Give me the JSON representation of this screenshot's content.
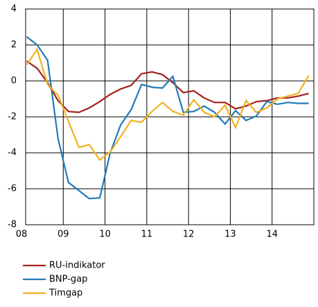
{
  "chart_data": {
    "type": "line",
    "x": [
      8.125,
      8.375,
      8.625,
      8.875,
      9.125,
      9.375,
      9.625,
      9.875,
      10.125,
      10.375,
      10.625,
      10.875,
      11.125,
      11.375,
      11.625,
      11.875,
      12.125,
      12.375,
      12.625,
      12.875,
      13.125,
      13.375,
      13.625,
      13.875,
      14.125,
      14.375,
      14.625,
      14.875
    ],
    "series": [
      {
        "name": "RU-indikator",
        "color": "#a3201f",
        "values": [
          1.1,
          0.7,
          -0.1,
          -1.1,
          -1.7,
          -1.75,
          -1.5,
          -1.15,
          -0.75,
          -0.45,
          -0.25,
          0.4,
          0.5,
          0.35,
          -0.1,
          -0.65,
          -0.55,
          -0.95,
          -1.2,
          -1.2,
          -1.55,
          -1.4,
          -1.15,
          -1.1,
          -0.95,
          -0.95,
          -0.85,
          -0.7
        ]
      },
      {
        "name": "BNP-gap",
        "color": "#1f7ab8",
        "values": [
          2.45,
          2.0,
          1.15,
          -3.2,
          -5.65,
          -6.1,
          -6.55,
          -6.5,
          -4.0,
          -2.45,
          -1.6,
          -0.2,
          -0.35,
          -0.4,
          0.25,
          -1.75,
          -1.7,
          -1.4,
          -1.75,
          -2.4,
          -1.65,
          -2.2,
          -1.95,
          -1.15,
          -1.3,
          -1.2,
          -1.25,
          -1.25
        ]
      },
      {
        "name": "Timgap",
        "color": "#f2b01e",
        "values": [
          0.9,
          1.75,
          -0.2,
          -0.8,
          -2.25,
          -3.7,
          -3.55,
          -4.4,
          -3.95,
          -3.1,
          -2.2,
          -2.3,
          -1.7,
          -1.2,
          -1.7,
          -1.9,
          -1.05,
          -1.75,
          -2.0,
          -1.35,
          -2.6,
          -1.1,
          -1.75,
          -1.5,
          -1.0,
          -0.85,
          -0.7,
          0.3
        ]
      }
    ],
    "xlim": [
      8,
      15
    ],
    "xticks": [
      {
        "value": 8,
        "label": "08"
      },
      {
        "value": 9,
        "label": "09"
      },
      {
        "value": 10,
        "label": "10"
      },
      {
        "value": 11,
        "label": "11"
      },
      {
        "value": 12,
        "label": "12"
      },
      {
        "value": 13,
        "label": "13"
      },
      {
        "value": 14,
        "label": "14"
      }
    ],
    "ylim": [
      -8,
      4
    ],
    "yticks": [
      -8,
      -6,
      -4,
      -2,
      0,
      2,
      4
    ],
    "grid": true
  }
}
